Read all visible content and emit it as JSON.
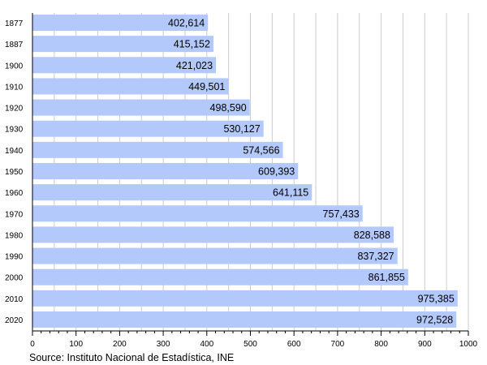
{
  "chart_data": {
    "type": "bar",
    "orientation": "horizontal",
    "categories": [
      "1877",
      "1887",
      "1900",
      "1910",
      "1920",
      "1930",
      "1940",
      "1950",
      "1960",
      "1970",
      "1980",
      "1990",
      "2000",
      "2010",
      "2020"
    ],
    "values": [
      402614,
      415152,
      421023,
      449501,
      498590,
      530127,
      574566,
      609393,
      641115,
      757433,
      828588,
      837327,
      861855,
      975385,
      972528
    ],
    "value_labels": [
      "402,614",
      "415,152",
      "421,023",
      "449,501",
      "498,590",
      "530,127",
      "574,566",
      "609,393",
      "641,115",
      "757,433",
      "828,588",
      "837,327",
      "861,855",
      "975,385",
      "972,528"
    ],
    "x_ticks": [
      0,
      100,
      200,
      300,
      400,
      500,
      600,
      700,
      800,
      900,
      1000
    ],
    "x_tick_unit": 1000,
    "xlim": [
      0,
      1000
    ],
    "grid": "vertical",
    "source": "Source: Instituto Nacional de Estadística, INE",
    "bar_color": "#b3c8fb",
    "grid_color": "#cccccc"
  }
}
